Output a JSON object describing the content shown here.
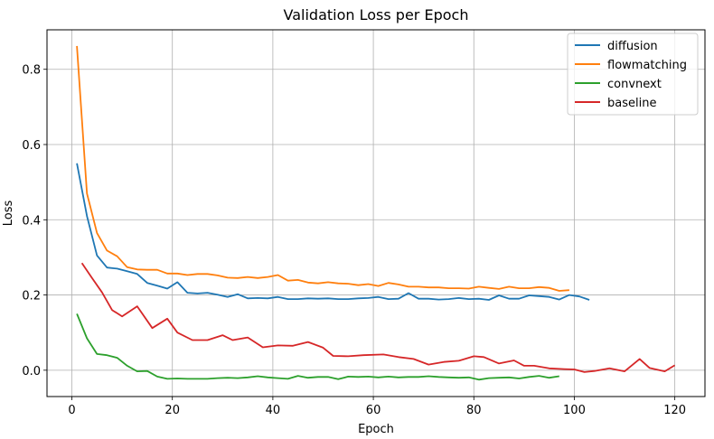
{
  "chart_data": {
    "type": "line",
    "title": "Validation Loss per Epoch",
    "xlabel": "Epoch",
    "ylabel": "Loss",
    "xlim": [
      -4.95,
      126.0
    ],
    "ylim": [
      -0.07,
      0.905
    ],
    "xticks": [
      0,
      20,
      40,
      60,
      80,
      100,
      120
    ],
    "yticks": [
      0.0,
      0.2,
      0.4,
      0.6,
      0.8
    ],
    "xtick_labels": [
      "0",
      "20",
      "40",
      "60",
      "80",
      "100",
      "120"
    ],
    "ytick_labels": [
      "0.0",
      "0.2",
      "0.4",
      "0.6",
      "0.8"
    ],
    "grid": true,
    "legend_position": "top-right",
    "series": [
      {
        "name": "diffusion",
        "color": "#1f77b4",
        "x": [
          1,
          3,
          5,
          7,
          9,
          11,
          13,
          15,
          17,
          19,
          21,
          23,
          25,
          27,
          29,
          31,
          33,
          35,
          37,
          39,
          41,
          43,
          45,
          47,
          49,
          51,
          53,
          55,
          57,
          59,
          61,
          63,
          65,
          67,
          69,
          71,
          73,
          75,
          77,
          79,
          81,
          83,
          85,
          87,
          89,
          91,
          93,
          95,
          97,
          99,
          101,
          103
        ],
        "y": [
          0.55,
          0.41,
          0.305,
          0.273,
          0.27,
          0.263,
          0.256,
          0.232,
          0.225,
          0.217,
          0.234,
          0.206,
          0.204,
          0.206,
          0.201,
          0.195,
          0.202,
          0.191,
          0.192,
          0.191,
          0.195,
          0.189,
          0.189,
          0.191,
          0.19,
          0.191,
          0.189,
          0.189,
          0.191,
          0.192,
          0.195,
          0.189,
          0.19,
          0.205,
          0.19,
          0.19,
          0.188,
          0.189,
          0.192,
          0.189,
          0.19,
          0.187,
          0.199,
          0.19,
          0.19,
          0.199,
          0.197,
          0.195,
          0.188,
          0.2,
          0.196,
          0.187
        ]
      },
      {
        "name": "flowmatching",
        "color": "#ff7f0e",
        "x": [
          1,
          3,
          5,
          7,
          9,
          11,
          13,
          15,
          17,
          19,
          21,
          23,
          25,
          27,
          29,
          31,
          33,
          35,
          37,
          39,
          41,
          43,
          45,
          47,
          49,
          51,
          53,
          55,
          57,
          59,
          61,
          63,
          65,
          67,
          69,
          71,
          73,
          75,
          77,
          79,
          81,
          83,
          85,
          87,
          89,
          91,
          93,
          95,
          97,
          99
        ],
        "y": [
          0.862,
          0.47,
          0.365,
          0.318,
          0.303,
          0.274,
          0.268,
          0.267,
          0.267,
          0.257,
          0.257,
          0.253,
          0.256,
          0.256,
          0.252,
          0.246,
          0.245,
          0.248,
          0.245,
          0.248,
          0.253,
          0.238,
          0.24,
          0.233,
          0.231,
          0.234,
          0.231,
          0.23,
          0.226,
          0.229,
          0.224,
          0.232,
          0.228,
          0.222,
          0.222,
          0.22,
          0.22,
          0.218,
          0.218,
          0.217,
          0.222,
          0.219,
          0.216,
          0.222,
          0.218,
          0.218,
          0.221,
          0.219,
          0.211,
          0.213
        ]
      },
      {
        "name": "convnext",
        "color": "#2ca02c",
        "x": [
          1,
          3,
          5,
          7,
          9,
          11,
          13,
          15,
          17,
          19,
          21,
          23,
          25,
          27,
          29,
          31,
          33,
          35,
          37,
          39,
          41,
          43,
          45,
          47,
          49,
          51,
          53,
          55,
          57,
          59,
          61,
          63,
          65,
          67,
          69,
          71,
          73,
          75,
          77,
          79,
          81,
          83,
          85,
          87,
          89,
          91,
          93,
          95,
          97
        ],
        "y": [
          0.15,
          0.085,
          0.043,
          0.04,
          0.033,
          0.012,
          -0.003,
          -0.002,
          -0.017,
          -0.023,
          -0.022,
          -0.023,
          -0.023,
          -0.023,
          -0.021,
          -0.02,
          -0.021,
          -0.019,
          -0.016,
          -0.019,
          -0.021,
          -0.023,
          -0.015,
          -0.02,
          -0.018,
          -0.018,
          -0.024,
          -0.017,
          -0.018,
          -0.017,
          -0.019,
          -0.017,
          -0.019,
          -0.018,
          -0.018,
          -0.016,
          -0.018,
          -0.019,
          -0.02,
          -0.019,
          -0.025,
          -0.021,
          -0.02,
          -0.019,
          -0.022,
          -0.018,
          -0.015,
          -0.02,
          -0.016
        ]
      },
      {
        "name": "baseline",
        "color": "#d62728",
        "x": [
          2,
          4,
          6,
          8,
          10,
          13,
          16,
          19,
          21,
          24,
          27,
          30,
          32,
          35,
          38,
          41,
          44,
          47,
          50,
          52,
          55,
          58,
          62,
          65,
          68,
          71,
          74,
          77,
          80,
          82,
          85,
          88,
          90,
          92,
          95,
          98,
          100,
          102,
          104,
          107,
          110,
          113,
          115,
          118,
          120
        ],
        "y": [
          0.285,
          0.245,
          0.207,
          0.16,
          0.143,
          0.17,
          0.112,
          0.137,
          0.1,
          0.08,
          0.08,
          0.093,
          0.08,
          0.087,
          0.061,
          0.066,
          0.065,
          0.075,
          0.06,
          0.038,
          0.037,
          0.04,
          0.042,
          0.035,
          0.03,
          0.015,
          0.022,
          0.025,
          0.037,
          0.035,
          0.018,
          0.026,
          0.012,
          0.012,
          0.005,
          0.003,
          0.002,
          -0.005,
          -0.002,
          0.005,
          -0.003,
          0.03,
          0.006,
          -0.003,
          0.013
        ]
      }
    ]
  }
}
